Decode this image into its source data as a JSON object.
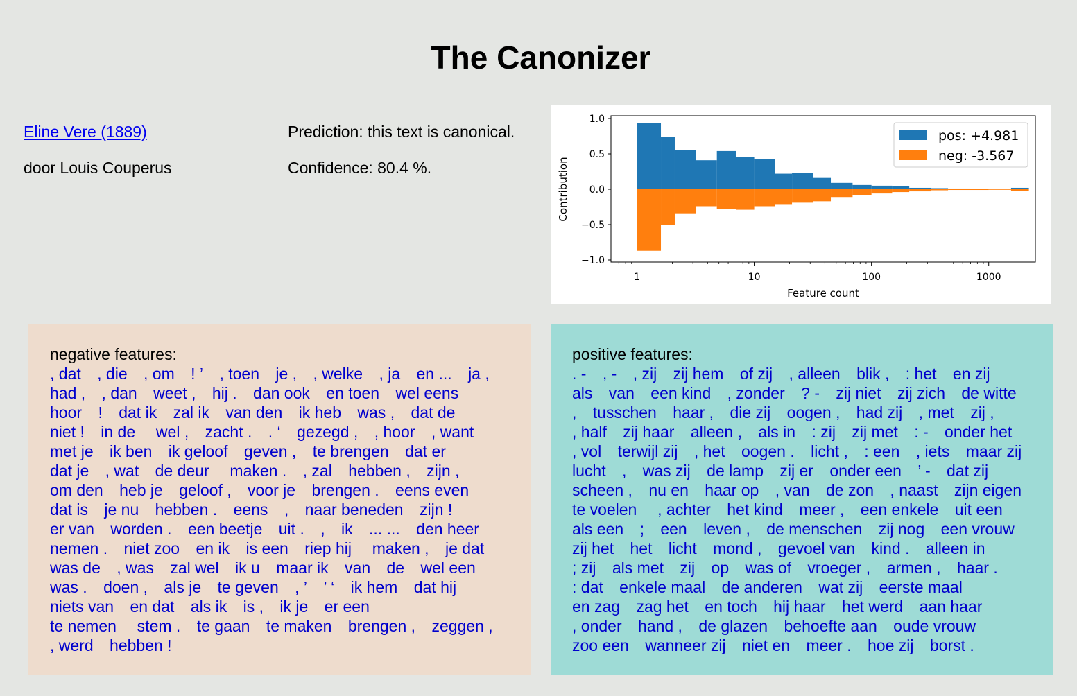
{
  "page": {
    "title": "The Canonizer"
  },
  "book": {
    "title_link": "Eline Vere (1889)",
    "author": "door Louis Couperus",
    "prediction": "Prediction: this text is canonical.",
    "confidence": "Confidence: 80.4 %."
  },
  "colors": {
    "pos": "#1f77b4",
    "neg": "#ff7f0e",
    "neg_panel": "#eedccd",
    "pos_panel": "#9edbd6",
    "feature_text": "#0000cc"
  },
  "chart_data": {
    "type": "bar",
    "xlabel": "Feature count",
    "ylabel": "Contribution",
    "xscale": "log",
    "xlim": [
      0.6,
      2500
    ],
    "ylim": [
      -1.0,
      1.0
    ],
    "xticks": [
      1,
      10,
      100,
      1000
    ],
    "xtick_labels": [
      "1",
      "10",
      "100",
      "1000"
    ],
    "yticks": [
      1.0,
      0.5,
      0.0,
      -0.5,
      -1.0
    ],
    "ytick_labels": [
      "1.0",
      "0.5",
      "0.0",
      "−0.5",
      "−1.0"
    ],
    "legend_placement": "upper-right",
    "bin_edges": [
      1,
      1.6,
      2.1,
      3.2,
      4.8,
      7,
      10,
      15,
      21,
      32,
      45,
      69,
      100,
      150,
      210,
      320,
      450,
      690,
      1000,
      1550,
      2200
    ],
    "series": [
      {
        "name": "pos: +4.981",
        "values": [
          0.94,
          0.74,
          0.55,
          0.41,
          0.54,
          0.46,
          0.43,
          0.22,
          0.23,
          0.16,
          0.09,
          0.06,
          0.05,
          0.04,
          0.02,
          0.015,
          0.01,
          0.008,
          0.006,
          0.02
        ]
      },
      {
        "name": "neg: -3.567",
        "values": [
          -0.87,
          -0.5,
          -0.34,
          -0.24,
          -0.28,
          -0.29,
          -0.24,
          -0.21,
          -0.19,
          -0.17,
          -0.11,
          -0.08,
          -0.06,
          -0.04,
          -0.03,
          -0.015,
          -0.01,
          -0.01,
          -0.005,
          -0.02
        ]
      }
    ]
  },
  "negative": {
    "title": "negative features:",
    "features": [
      ", dat",
      ", die",
      ", om",
      "! ’",
      ", toen",
      "je ,",
      ", welke",
      ", ja",
      "en ...",
      "ja ,",
      "had ,",
      ", dan",
      "weet ,",
      "hij .",
      "dan ook",
      "en toen",
      "wel eens",
      "hoor",
      "!",
      "dat ik",
      "zal ik",
      "van den",
      "ik heb",
      "was ,",
      "dat de",
      "niet !",
      "in de",
      " wel ,",
      "zacht .",
      ". ‘",
      "gezegd ,",
      ", hoor",
      ", want",
      "met je",
      "ik ben",
      "ik geloof",
      "geven ,",
      "te brengen",
      "dat er",
      "dat je",
      ", wat",
      "de deur",
      " maken .",
      ", zal",
      "hebben ,",
      "zijn ,",
      "om den",
      "heb je",
      "geloof ,",
      "voor je",
      "brengen .",
      "eens even",
      "dat is",
      "je nu",
      "hebben .",
      "eens",
      ",",
      "naar beneden",
      "zijn !",
      "er van",
      "worden .",
      "een beetje",
      "uit .",
      ",",
      "ik",
      "... ...",
      "den heer",
      "nemen .",
      "niet zoo",
      "en ik",
      "is een",
      "riep hij",
      " maken ,",
      "je dat",
      "was de",
      ", was",
      "zal wel",
      "ik u",
      "maar ik",
      "van",
      "de",
      "wel een",
      "was .",
      "doen ,",
      "als je",
      "te geven",
      ", ’",
      "’ ‘",
      "ik hem",
      "dat hij",
      "niets van",
      "en dat",
      "als ik",
      "is ,",
      "ik je",
      "er een",
      "te nemen",
      " stem .",
      "te gaan",
      "te maken",
      "brengen ,",
      "zeggen ,",
      ", werd",
      "hebben !"
    ]
  },
  "positive": {
    "title": "positive features:",
    "features": [
      ". -",
      ", -",
      ", zij",
      "zij hem",
      "of zij",
      ", alleen",
      "blik ,",
      ": het",
      "en zij",
      "als",
      "van",
      "een kind",
      ", zonder",
      "? -",
      "zij niet",
      "zij zich",
      "de witte",
      ",",
      "tusschen",
      "haar ,",
      "die zij",
      "oogen ,",
      "had zij",
      ", met",
      "zij ,",
      ", half",
      "zij haar",
      "alleen ,",
      "als in",
      ": zij",
      "zij met",
      ": -",
      "onder het",
      ", vol",
      "terwijl zij",
      ", het",
      "oogen .",
      "licht ,",
      ": een",
      ", iets",
      "maar zij",
      "lucht",
      ",",
      "was zij",
      "de lamp",
      "zij er",
      "onder een",
      "’ -",
      "dat zij",
      "scheen ,",
      "nu en",
      "haar op",
      ", van",
      "de zon",
      ", naast",
      "zijn eigen",
      "te voelen",
      " , achter",
      "het kind",
      "meer ,",
      "een enkele",
      "uit een",
      "als een",
      ";",
      "een",
      "leven ,",
      "de menschen",
      "zij nog",
      "een vrouw",
      "zij het",
      "het",
      "licht",
      "mond ,",
      "gevoel van",
      "kind .",
      "alleen in",
      "; zij",
      "als met",
      "zij",
      "op",
      "was of",
      "vroeger ,",
      "armen ,",
      "haar .",
      ": dat",
      "enkele maal",
      "de anderen",
      "wat zij",
      "eerste maal",
      "en zag",
      "zag het",
      "en toch",
      "hij haar",
      "het werd",
      "aan haar",
      ", onder",
      "hand ,",
      "de glazen",
      "behoefte aan",
      "oude vrouw",
      "zoo een",
      "wanneer zij",
      "niet en",
      "meer .",
      "hoe zij",
      "borst ."
    ]
  }
}
